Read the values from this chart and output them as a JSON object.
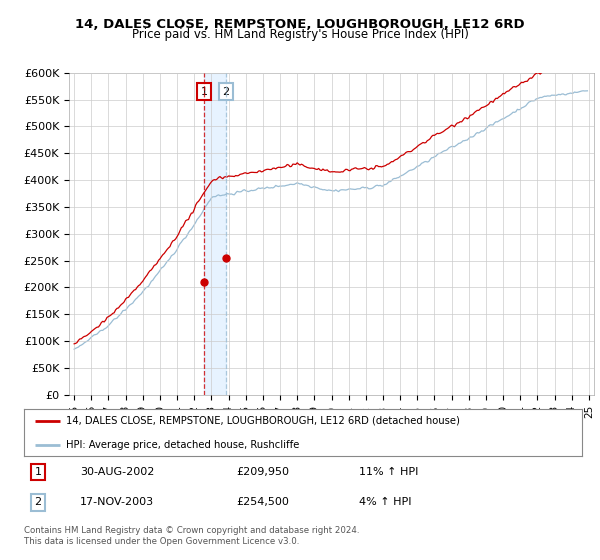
{
  "title": "14, DALES CLOSE, REMPSTONE, LOUGHBOROUGH, LE12 6RD",
  "subtitle": "Price paid vs. HM Land Registry's House Price Index (HPI)",
  "ylabel_ticks": [
    "£0",
    "£50K",
    "£100K",
    "£150K",
    "£200K",
    "£250K",
    "£300K",
    "£350K",
    "£400K",
    "£450K",
    "£500K",
    "£550K",
    "£600K"
  ],
  "ytick_values": [
    0,
    50000,
    100000,
    150000,
    200000,
    250000,
    300000,
    350000,
    400000,
    450000,
    500000,
    550000,
    600000
  ],
  "hpi_color": "#9bbdd4",
  "price_color": "#cc0000",
  "vline1_color": "#cc0000",
  "vline2_color": "#9bbdd4",
  "shade_color": "#ddeeff",
  "legend_label1": "14, DALES CLOSE, REMPSTONE, LOUGHBOROUGH, LE12 6RD (detached house)",
  "legend_label2": "HPI: Average price, detached house, Rushcliffe",
  "transaction1_date": "30-AUG-2002",
  "transaction1_price": "£209,950",
  "transaction1_hpi": "11% ↑ HPI",
  "transaction2_date": "17-NOV-2003",
  "transaction2_price": "£254,500",
  "transaction2_hpi": "4% ↑ HPI",
  "footer": "Contains HM Land Registry data © Crown copyright and database right 2024.\nThis data is licensed under the Open Government Licence v3.0.",
  "background_color": "#ffffff",
  "plot_bg_color": "#ffffff",
  "t1_year": 2002.583,
  "t2_year": 2003.833,
  "t1_price": 209950,
  "t2_price": 254500
}
